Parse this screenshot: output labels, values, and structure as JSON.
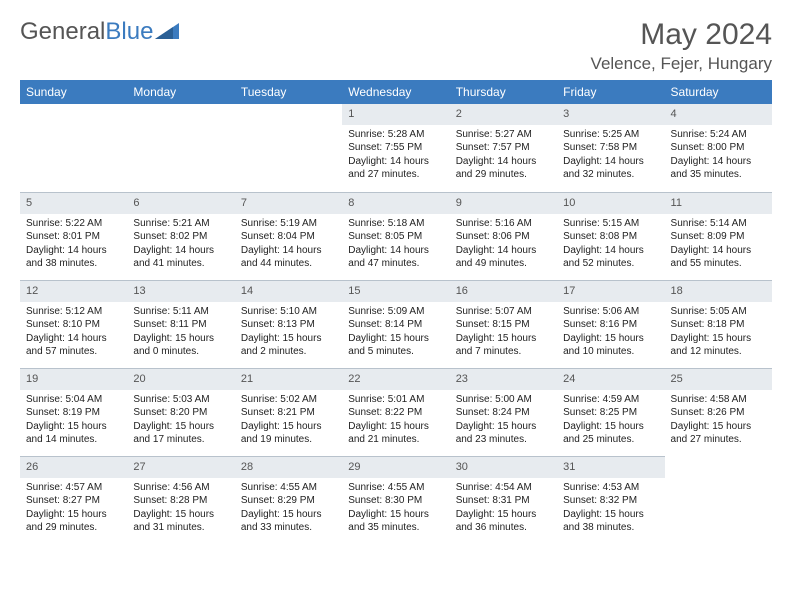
{
  "brand": {
    "part1": "General",
    "part2": "Blue"
  },
  "title": "May 2024",
  "location": "Velence, Fejer, Hungary",
  "colors": {
    "accent": "#3b7bbf",
    "dayHeader": "#e7ebef",
    "border": "#b8c2cc",
    "text": "#333"
  },
  "weekday_labels": [
    "Sunday",
    "Monday",
    "Tuesday",
    "Wednesday",
    "Thursday",
    "Friday",
    "Saturday"
  ],
  "first_weekday_index": 3,
  "days": [
    {
      "n": 1,
      "sunrise": "5:28 AM",
      "sunset": "7:55 PM",
      "daylight": "14 hours and 27 minutes."
    },
    {
      "n": 2,
      "sunrise": "5:27 AM",
      "sunset": "7:57 PM",
      "daylight": "14 hours and 29 minutes."
    },
    {
      "n": 3,
      "sunrise": "5:25 AM",
      "sunset": "7:58 PM",
      "daylight": "14 hours and 32 minutes."
    },
    {
      "n": 4,
      "sunrise": "5:24 AM",
      "sunset": "8:00 PM",
      "daylight": "14 hours and 35 minutes."
    },
    {
      "n": 5,
      "sunrise": "5:22 AM",
      "sunset": "8:01 PM",
      "daylight": "14 hours and 38 minutes."
    },
    {
      "n": 6,
      "sunrise": "5:21 AM",
      "sunset": "8:02 PM",
      "daylight": "14 hours and 41 minutes."
    },
    {
      "n": 7,
      "sunrise": "5:19 AM",
      "sunset": "8:04 PM",
      "daylight": "14 hours and 44 minutes."
    },
    {
      "n": 8,
      "sunrise": "5:18 AM",
      "sunset": "8:05 PM",
      "daylight": "14 hours and 47 minutes."
    },
    {
      "n": 9,
      "sunrise": "5:16 AM",
      "sunset": "8:06 PM",
      "daylight": "14 hours and 49 minutes."
    },
    {
      "n": 10,
      "sunrise": "5:15 AM",
      "sunset": "8:08 PM",
      "daylight": "14 hours and 52 minutes."
    },
    {
      "n": 11,
      "sunrise": "5:14 AM",
      "sunset": "8:09 PM",
      "daylight": "14 hours and 55 minutes."
    },
    {
      "n": 12,
      "sunrise": "5:12 AM",
      "sunset": "8:10 PM",
      "daylight": "14 hours and 57 minutes."
    },
    {
      "n": 13,
      "sunrise": "5:11 AM",
      "sunset": "8:11 PM",
      "daylight": "15 hours and 0 minutes."
    },
    {
      "n": 14,
      "sunrise": "5:10 AM",
      "sunset": "8:13 PM",
      "daylight": "15 hours and 2 minutes."
    },
    {
      "n": 15,
      "sunrise": "5:09 AM",
      "sunset": "8:14 PM",
      "daylight": "15 hours and 5 minutes."
    },
    {
      "n": 16,
      "sunrise": "5:07 AM",
      "sunset": "8:15 PM",
      "daylight": "15 hours and 7 minutes."
    },
    {
      "n": 17,
      "sunrise": "5:06 AM",
      "sunset": "8:16 PM",
      "daylight": "15 hours and 10 minutes."
    },
    {
      "n": 18,
      "sunrise": "5:05 AM",
      "sunset": "8:18 PM",
      "daylight": "15 hours and 12 minutes."
    },
    {
      "n": 19,
      "sunrise": "5:04 AM",
      "sunset": "8:19 PM",
      "daylight": "15 hours and 14 minutes."
    },
    {
      "n": 20,
      "sunrise": "5:03 AM",
      "sunset": "8:20 PM",
      "daylight": "15 hours and 17 minutes."
    },
    {
      "n": 21,
      "sunrise": "5:02 AM",
      "sunset": "8:21 PM",
      "daylight": "15 hours and 19 minutes."
    },
    {
      "n": 22,
      "sunrise": "5:01 AM",
      "sunset": "8:22 PM",
      "daylight": "15 hours and 21 minutes."
    },
    {
      "n": 23,
      "sunrise": "5:00 AM",
      "sunset": "8:24 PM",
      "daylight": "15 hours and 23 minutes."
    },
    {
      "n": 24,
      "sunrise": "4:59 AM",
      "sunset": "8:25 PM",
      "daylight": "15 hours and 25 minutes."
    },
    {
      "n": 25,
      "sunrise": "4:58 AM",
      "sunset": "8:26 PM",
      "daylight": "15 hours and 27 minutes."
    },
    {
      "n": 26,
      "sunrise": "4:57 AM",
      "sunset": "8:27 PM",
      "daylight": "15 hours and 29 minutes."
    },
    {
      "n": 27,
      "sunrise": "4:56 AM",
      "sunset": "8:28 PM",
      "daylight": "15 hours and 31 minutes."
    },
    {
      "n": 28,
      "sunrise": "4:55 AM",
      "sunset": "8:29 PM",
      "daylight": "15 hours and 33 minutes."
    },
    {
      "n": 29,
      "sunrise": "4:55 AM",
      "sunset": "8:30 PM",
      "daylight": "15 hours and 35 minutes."
    },
    {
      "n": 30,
      "sunrise": "4:54 AM",
      "sunset": "8:31 PM",
      "daylight": "15 hours and 36 minutes."
    },
    {
      "n": 31,
      "sunrise": "4:53 AM",
      "sunset": "8:32 PM",
      "daylight": "15 hours and 38 minutes."
    }
  ],
  "labels": {
    "sunrise": "Sunrise:",
    "sunset": "Sunset:",
    "daylight": "Daylight:"
  }
}
